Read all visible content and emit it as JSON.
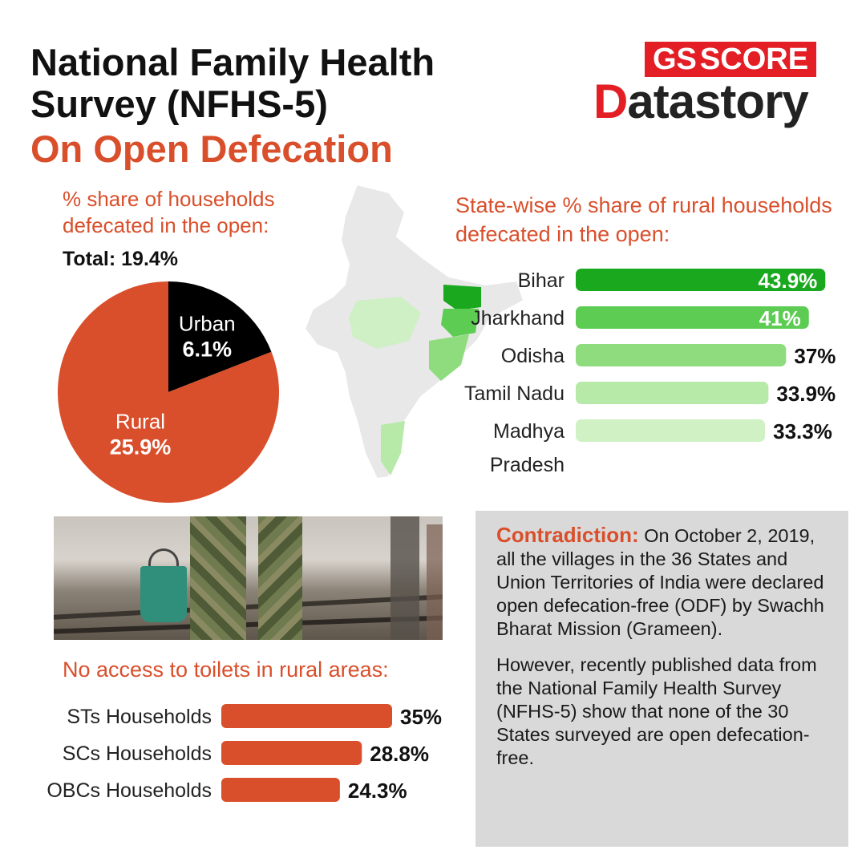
{
  "title": {
    "line1": "National Family Health Survey (NFHS-5)",
    "line2": "On Open Defecation"
  },
  "logo": {
    "gs": "GS",
    "score": "SCORE",
    "datastory_d": "D",
    "datastory_rest": "atastory"
  },
  "colors": {
    "accent": "#d94f2b",
    "urban": "#000000",
    "rural": "#d94f2b",
    "green_dark": "#1fa81f",
    "green_light": "#cdefc0"
  },
  "chart_data": [
    {
      "type": "pie",
      "title": "% share of households defecated in the open:",
      "subtitle": "Total: 19.4%",
      "slices": [
        {
          "label": "Urban",
          "value": 6.1,
          "display": "6.1%"
        },
        {
          "label": "Rural",
          "value": 25.9,
          "display": "25.9%"
        }
      ]
    },
    {
      "type": "bar",
      "orientation": "horizontal",
      "title": "State-wise % share of rural households defecated in the open:",
      "categories": [
        "Bihar",
        "Jharkhand",
        "Odisha",
        "Tamil Nadu",
        "Madhya Pradesh"
      ],
      "values": [
        43.9,
        41,
        37,
        33.9,
        33.3
      ],
      "labels": [
        "43.9%",
        "41%",
        "37%",
        "33.9%",
        "33.3%"
      ],
      "colors": [
        "#19a81e",
        "#5ccc52",
        "#8edc7e",
        "#b7e9a8",
        "#cff1c4"
      ]
    },
    {
      "type": "bar",
      "orientation": "horizontal",
      "title": "No access to toilets in rural areas:",
      "categories": [
        "STs Households",
        "SCs Households",
        "OBCs Households"
      ],
      "values": [
        35,
        28.8,
        24.3
      ],
      "labels": [
        "35%",
        "28.8%",
        "24.3%"
      ],
      "color": "#d94f2b"
    }
  ],
  "contradiction": {
    "lead": "Contradiction:",
    "p1": "On October 2, 2019, all the villages in the 36 States and Union Territories of India were declared open defecation-free (ODF) by Swachh Bharat Mission (Grameen).",
    "p2": "However, recently published data from the National Family Health Survey (NFHS-5) show that none of the 30 States surveyed are open defecation-free."
  }
}
